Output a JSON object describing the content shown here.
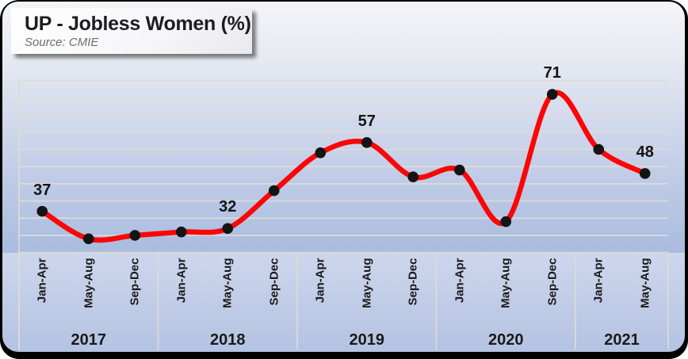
{
  "header": {
    "title": "UP - Jobless Women (%)",
    "source": "Source: CMIE"
  },
  "chart_data": {
    "type": "line",
    "title": "UP - Jobless Women (%)",
    "source": "Source: CMIE",
    "categories": [
      "Jan-Apr 2017",
      "May-Aug 2017",
      "Sep-Dec 2017",
      "Jan-Apr 2018",
      "May-Aug 2018",
      "Sep-Dec 2018",
      "Jan-Apr 2019",
      "May-Aug 2019",
      "Sep-Dec 2019",
      "Jan-Apr 2020",
      "May-Aug 2020",
      "Sep-Dec 2020",
      "Jan-Apr 2021",
      "May-Aug 2021"
    ],
    "groups": [
      {
        "year": "2017",
        "periods": [
          "Jan-Apr",
          "May-Aug",
          "Sep-Dec"
        ]
      },
      {
        "year": "2018",
        "periods": [
          "Jan-Apr",
          "May-Aug",
          "Sep-Dec"
        ]
      },
      {
        "year": "2019",
        "periods": [
          "Jan-Apr",
          "May-Aug",
          "Sep-Dec"
        ]
      },
      {
        "year": "2020",
        "periods": [
          "Jan-Apr",
          "May-Aug",
          "Sep-Dec"
        ]
      },
      {
        "year": "2021",
        "periods": [
          "Jan-Apr",
          "May-Aug"
        ]
      }
    ],
    "series": [
      {
        "name": "Jobless Women (%)",
        "values": [
          37,
          29,
          30,
          31,
          32,
          43,
          54,
          57,
          47,
          49,
          34,
          71,
          55,
          48
        ]
      }
    ],
    "data_labels": [
      {
        "index": 0,
        "text": "37"
      },
      {
        "index": 4,
        "text": "32"
      },
      {
        "index": 7,
        "text": "57"
      },
      {
        "index": 11,
        "text": "71"
      },
      {
        "index": 13,
        "text": "48"
      }
    ],
    "ylim": [
      25,
      75
    ],
    "grid_step": 5,
    "grid": true,
    "legend": "none",
    "line_color": "#fb0607",
    "marker_color": "#141414",
    "grid_color": "#dfdcd6"
  }
}
